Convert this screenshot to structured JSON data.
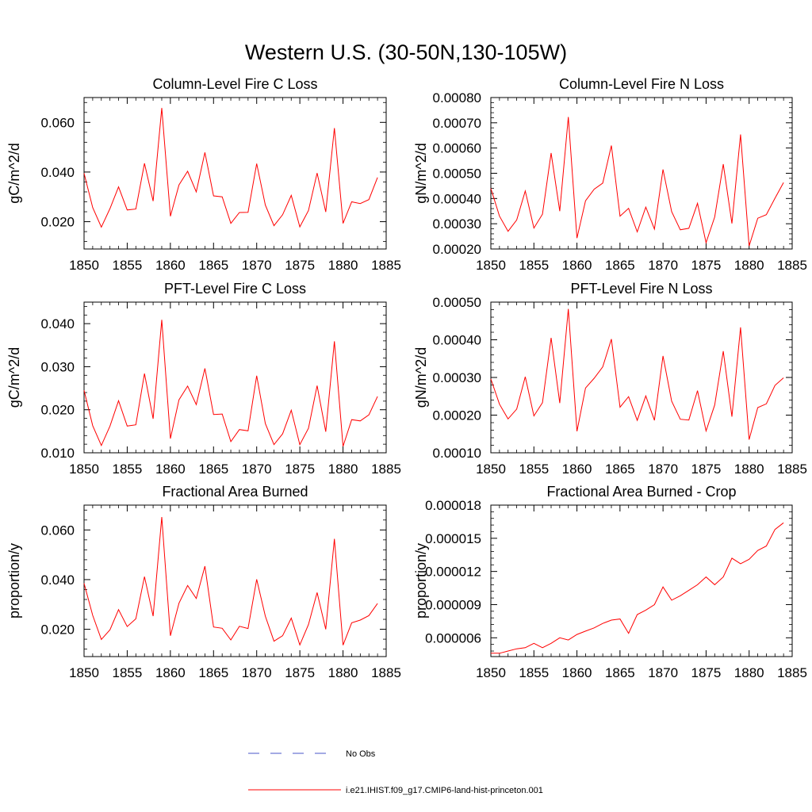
{
  "figure_title": "Western U.S. (30-50N,130-105W)",
  "legend": [
    {
      "label": "No Obs",
      "color": "#4a55c8",
      "style": "dashed"
    },
    {
      "label": "i.e21.IHIST.f09_g17.CMIP6-land-hist-princeton.001",
      "color": "#ff0000",
      "style": "solid"
    }
  ],
  "chart_data": [
    {
      "type": "line",
      "title": "Column-Level Fire C Loss",
      "xlabel": "",
      "ylabel": "gC/m^2/d",
      "xlim": [
        1850,
        1885
      ],
      "ylim": [
        0.009,
        0.07
      ],
      "xticks": [
        1850,
        1855,
        1860,
        1865,
        1870,
        1875,
        1880,
        1885
      ],
      "xtick_labels": [
        "1850",
        "1855",
        "1860",
        "1865",
        "1870",
        "1875",
        "1880",
        "1885"
      ],
      "yticks": [
        0.02,
        0.04,
        0.06
      ],
      "ytick_labels": [
        "0.020",
        "0.040",
        "0.060"
      ],
      "series": [
        {
          "color": "#ff0000",
          "x": [
            1850,
            1851,
            1852,
            1853,
            1854,
            1855,
            1856,
            1857,
            1858,
            1859,
            1860,
            1861,
            1862,
            1863,
            1864,
            1865,
            1866,
            1867,
            1868,
            1869,
            1870,
            1871,
            1872,
            1873,
            1874,
            1875,
            1876,
            1877,
            1878,
            1879,
            1880,
            1881,
            1882,
            1883,
            1884
          ],
          "y": [
            0.0395,
            0.0257,
            0.0178,
            0.0253,
            0.034,
            0.0247,
            0.0251,
            0.0435,
            0.0283,
            0.0658,
            0.0222,
            0.0348,
            0.0403,
            0.032,
            0.0479,
            0.0304,
            0.03,
            0.0193,
            0.0237,
            0.0238,
            0.0434,
            0.0267,
            0.0184,
            0.0228,
            0.0306,
            0.0179,
            0.0245,
            0.0396,
            0.0239,
            0.0577,
            0.0193,
            0.028,
            0.0273,
            0.0289,
            0.0378
          ]
        }
      ]
    },
    {
      "type": "line",
      "title": "Column-Level Fire N Loss",
      "xlabel": "",
      "ylabel": "gN/m^2/d",
      "xlim": [
        1850,
        1885
      ],
      "ylim": [
        0.0002,
        0.0008
      ],
      "xticks": [
        1850,
        1855,
        1860,
        1865,
        1870,
        1875,
        1880,
        1885
      ],
      "xtick_labels": [
        "1850",
        "1855",
        "1860",
        "1865",
        "1870",
        "1875",
        "1880",
        "1885"
      ],
      "yticks": [
        0.0002,
        0.0003,
        0.0004,
        0.0005,
        0.0006,
        0.0007,
        0.0008
      ],
      "ytick_labels": [
        "0.00020",
        "0.00030",
        "0.00040",
        "0.00050",
        "0.00060",
        "0.00070",
        "0.00080"
      ],
      "series": [
        {
          "color": "#ff0000",
          "x": [
            1850,
            1851,
            1852,
            1853,
            1854,
            1855,
            1856,
            1857,
            1858,
            1859,
            1860,
            1861,
            1862,
            1863,
            1864,
            1865,
            1866,
            1867,
            1868,
            1869,
            1870,
            1871,
            1872,
            1873,
            1874,
            1875,
            1876,
            1877,
            1878,
            1879,
            1880,
            1881,
            1882,
            1883,
            1884
          ],
          "y": [
            0.00044,
            0.00033,
            0.00027,
            0.000315,
            0.00043,
            0.000283,
            0.000338,
            0.00058,
            0.00035,
            0.000723,
            0.000243,
            0.000391,
            0.000437,
            0.000461,
            0.00061,
            0.00033,
            0.000361,
            0.000268,
            0.000366,
            0.000279,
            0.000515,
            0.000348,
            0.000276,
            0.000282,
            0.000381,
            0.000225,
            0.000327,
            0.000536,
            0.000301,
            0.000654,
            0.000212,
            0.000322,
            0.000336,
            0.000401,
            0.000463
          ]
        }
      ]
    },
    {
      "type": "line",
      "title": "PFT-Level Fire C Loss",
      "xlabel": "",
      "ylabel": "gC/m^2/d",
      "xlim": [
        1850,
        1885
      ],
      "ylim": [
        0.01,
        0.045
      ],
      "xticks": [
        1850,
        1855,
        1860,
        1865,
        1870,
        1875,
        1880,
        1885
      ],
      "xtick_labels": [
        "1850",
        "1855",
        "1860",
        "1865",
        "1870",
        "1875",
        "1880",
        "1885"
      ],
      "yticks": [
        0.01,
        0.02,
        0.03,
        0.04
      ],
      "ytick_labels": [
        "0.010",
        "0.020",
        "0.030",
        "0.040"
      ],
      "series": [
        {
          "color": "#ff0000",
          "x": [
            1850,
            1851,
            1852,
            1853,
            1854,
            1855,
            1856,
            1857,
            1858,
            1859,
            1860,
            1861,
            1862,
            1863,
            1864,
            1865,
            1866,
            1867,
            1868,
            1869,
            1870,
            1871,
            1872,
            1873,
            1874,
            1875,
            1876,
            1877,
            1878,
            1879,
            1880,
            1881,
            1882,
            1883,
            1884
          ],
          "y": [
            0.0245,
            0.0163,
            0.0117,
            0.0162,
            0.0221,
            0.0162,
            0.0165,
            0.0284,
            0.0179,
            0.0409,
            0.0133,
            0.0223,
            0.0255,
            0.0212,
            0.0296,
            0.0189,
            0.019,
            0.0126,
            0.0154,
            0.0151,
            0.0279,
            0.0168,
            0.0119,
            0.0144,
            0.0199,
            0.0119,
            0.0157,
            0.0256,
            0.0149,
            0.0359,
            0.0115,
            0.0177,
            0.0174,
            0.0188,
            0.0231
          ]
        }
      ]
    },
    {
      "type": "line",
      "title": "PFT-Level Fire N Loss",
      "xlabel": "",
      "ylabel": "gN/m^2/d",
      "xlim": [
        1850,
        1885
      ],
      "ylim": [
        0.0001,
        0.0005
      ],
      "xticks": [
        1850,
        1855,
        1860,
        1865,
        1870,
        1875,
        1880,
        1885
      ],
      "xtick_labels": [
        "1850",
        "1855",
        "1860",
        "1865",
        "1870",
        "1875",
        "1880",
        "1885"
      ],
      "yticks": [
        0.0001,
        0.0002,
        0.0003,
        0.0004,
        0.0005
      ],
      "ytick_labels": [
        "0.00010",
        "0.00020",
        "0.00030",
        "0.00040",
        "0.00050"
      ],
      "series": [
        {
          "color": "#ff0000",
          "x": [
            1850,
            1851,
            1852,
            1853,
            1854,
            1855,
            1856,
            1857,
            1858,
            1859,
            1860,
            1861,
            1862,
            1863,
            1864,
            1865,
            1866,
            1867,
            1868,
            1869,
            1870,
            1871,
            1872,
            1873,
            1874,
            1875,
            1876,
            1877,
            1878,
            1879,
            1880,
            1881,
            1882,
            1883,
            1884
          ],
          "y": [
            0.000296,
            0.000229,
            0.00019,
            0.000216,
            0.000302,
            0.000198,
            0.000233,
            0.000405,
            0.000232,
            0.000482,
            0.000157,
            0.000272,
            0.000298,
            0.000328,
            0.000402,
            0.000221,
            0.000249,
            0.000186,
            0.000251,
            0.000186,
            0.000357,
            0.000237,
            0.000189,
            0.000187,
            0.000265,
            0.000158,
            0.000227,
            0.00037,
            0.000196,
            0.000433,
            0.000135,
            0.00022,
            0.00023,
            0.000279,
            0.000299
          ]
        }
      ]
    },
    {
      "type": "line",
      "title": "Fractional Area Burned",
      "xlabel": "",
      "ylabel": "proportion/y",
      "xlim": [
        1850,
        1885
      ],
      "ylim": [
        0.009,
        0.07
      ],
      "xticks": [
        1850,
        1855,
        1860,
        1865,
        1870,
        1875,
        1880,
        1885
      ],
      "xtick_labels": [
        "1850",
        "1855",
        "1860",
        "1865",
        "1870",
        "1875",
        "1880",
        "1885"
      ],
      "yticks": [
        0.02,
        0.04,
        0.06
      ],
      "ytick_labels": [
        "0.020",
        "0.040",
        "0.060"
      ],
      "series": [
        {
          "color": "#ff0000",
          "x": [
            1850,
            1851,
            1852,
            1853,
            1854,
            1855,
            1856,
            1857,
            1858,
            1859,
            1860,
            1861,
            1862,
            1863,
            1864,
            1865,
            1866,
            1867,
            1868,
            1869,
            1870,
            1871,
            1872,
            1873,
            1874,
            1875,
            1876,
            1877,
            1878,
            1879,
            1880,
            1881,
            1882,
            1883,
            1884
          ],
          "y": [
            0.0385,
            0.0256,
            0.0159,
            0.0198,
            0.0279,
            0.0211,
            0.0242,
            0.0412,
            0.0253,
            0.0652,
            0.0174,
            0.0305,
            0.0376,
            0.0324,
            0.0454,
            0.0209,
            0.0204,
            0.0157,
            0.0212,
            0.0203,
            0.0401,
            0.0253,
            0.0152,
            0.0174,
            0.0245,
            0.0137,
            0.0219,
            0.0348,
            0.02,
            0.0564,
            0.0136,
            0.0226,
            0.0237,
            0.0255,
            0.0304
          ]
        }
      ]
    },
    {
      "type": "line",
      "title": "Fractional Area Burned - Crop",
      "xlabel": "",
      "ylabel": "proportion/y",
      "xlim": [
        1850,
        1885
      ],
      "ylim": [
        4.3e-06,
        1.8e-05
      ],
      "xticks": [
        1850,
        1855,
        1860,
        1865,
        1870,
        1875,
        1880,
        1885
      ],
      "xtick_labels": [
        "1850",
        "1855",
        "1860",
        "1865",
        "1870",
        "1875",
        "1880",
        "1885"
      ],
      "yticks": [
        6e-06,
        9e-06,
        1.2e-05,
        1.5e-05,
        1.8e-05
      ],
      "ytick_labels": [
        "0.000006",
        "0.000009",
        "0.000012",
        "0.000015",
        "0.000018"
      ],
      "series": [
        {
          "color": "#ff0000",
          "x": [
            1850,
            1851,
            1852,
            1853,
            1854,
            1855,
            1856,
            1857,
            1858,
            1859,
            1860,
            1861,
            1862,
            1863,
            1864,
            1865,
            1866,
            1867,
            1868,
            1869,
            1870,
            1871,
            1872,
            1873,
            1874,
            1875,
            1876,
            1877,
            1878,
            1879,
            1880,
            1881,
            1882,
            1883,
            1884
          ],
          "y": [
            4.6e-06,
            4.6e-06,
            4.8e-06,
            5e-06,
            5.1e-06,
            5.5e-06,
            5.1e-06,
            5.5e-06,
            6e-06,
            5.8e-06,
            6.3e-06,
            6.6e-06,
            6.9e-06,
            7.3e-06,
            7.6e-06,
            7.7e-06,
            6.4e-06,
            8.1e-06,
            8.5e-06,
            9e-06,
            1.06e-05,
            9.4e-06,
            9.8e-06,
            1.03e-05,
            1.08e-05,
            1.15e-05,
            1.08e-05,
            1.15e-05,
            1.32e-05,
            1.27e-05,
            1.31e-05,
            1.39e-05,
            1.43e-05,
            1.58e-05,
            1.64e-05
          ]
        }
      ]
    }
  ]
}
